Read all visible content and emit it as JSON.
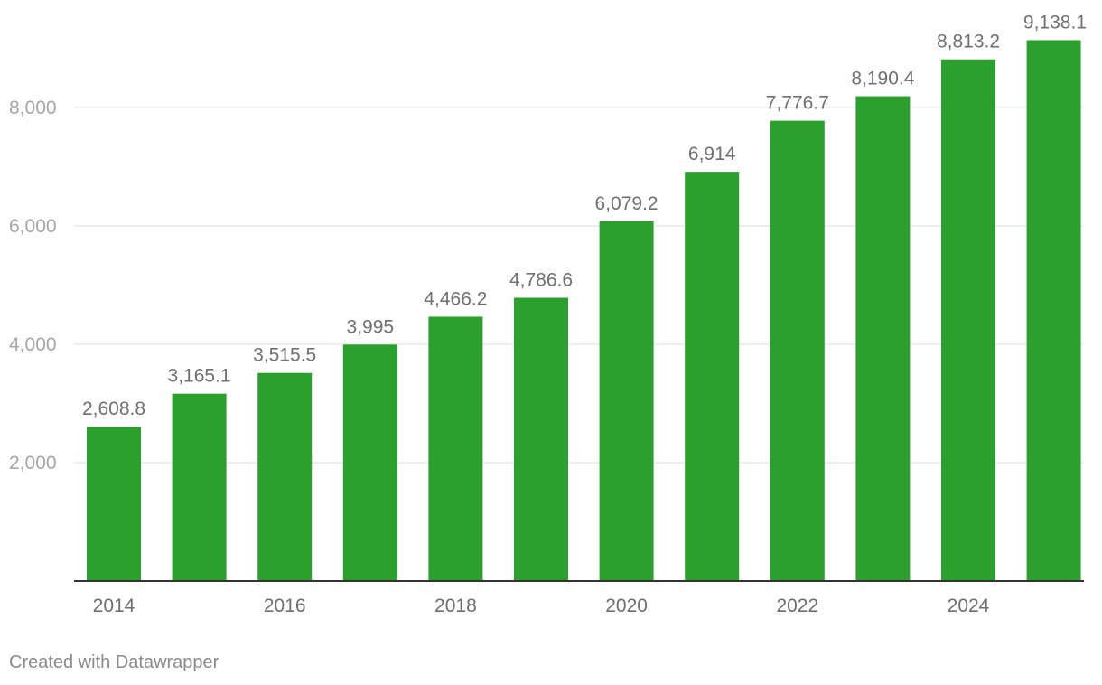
{
  "chart_data": {
    "type": "bar",
    "title": "",
    "xlabel": "",
    "ylabel": "",
    "categories": [
      "2014",
      "2015",
      "2016",
      "2017",
      "2018",
      "2019",
      "2020",
      "2021",
      "2022",
      "2023",
      "2024",
      "2025"
    ],
    "values": [
      2608.8,
      3165.1,
      3515.5,
      3995,
      4466.2,
      4786.6,
      6079.2,
      6914,
      7776.7,
      8190.4,
      8813.2,
      9138.1
    ],
    "data_labels": [
      "2,608.8",
      "3,165.1",
      "3,515.5",
      "3,995",
      "4,466.2",
      "4,786.6",
      "6,079.2",
      "6,914",
      "7,776.7",
      "8,190.4",
      "8,813.2",
      "9,138.1"
    ],
    "x_tick_labels": [
      "2014",
      "2016",
      "2018",
      "2020",
      "2022",
      "2024"
    ],
    "y_ticks": [
      2000,
      4000,
      6000,
      8000
    ],
    "y_tick_labels": [
      "2,000",
      "4,000",
      "6,000",
      "8,000"
    ],
    "ylim": [
      0,
      9500
    ],
    "grid": true,
    "bar_color": "#2ca02c",
    "legend": "none"
  },
  "footer": {
    "credit": "Created with Datawrapper"
  }
}
